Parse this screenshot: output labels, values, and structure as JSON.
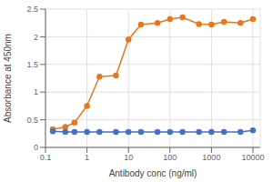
{
  "chart_data": {
    "type": "line",
    "x": [
      0.15,
      0.3,
      0.5,
      1.0,
      2.0,
      5.0,
      10.0,
      20.0,
      50.0,
      100.0,
      200.0,
      500.0,
      1000.0,
      2000.0,
      5000.0,
      10000.0
    ],
    "series": [
      {
        "color": "#E8781E",
        "marker": "circle",
        "values": [
          0.33,
          0.37,
          0.45,
          0.75,
          1.28,
          1.3,
          1.95,
          2.22,
          2.25,
          2.32,
          2.35,
          2.23,
          2.22,
          2.27,
          2.25,
          2.32
        ]
      },
      {
        "color": "#4472C4",
        "marker": "circle",
        "values": [
          0.29,
          0.28,
          0.28,
          0.28,
          0.28,
          0.28,
          0.28,
          0.28,
          0.28,
          0.28,
          0.28,
          0.28,
          0.28,
          0.28,
          0.28,
          0.31
        ]
      }
    ],
    "xlabel": "Antibody conc (ng/ml)",
    "ylabel": "Absorbance at 450nm",
    "log": "x",
    "xlim": [
      0.1,
      15000
    ],
    "xticks": [
      0.1,
      1,
      10,
      100,
      1000,
      10000
    ],
    "ylim": [
      0,
      2.5
    ],
    "yticks": [
      0,
      0.5,
      1,
      1.5,
      2,
      2.5
    ],
    "grid": true
  }
}
